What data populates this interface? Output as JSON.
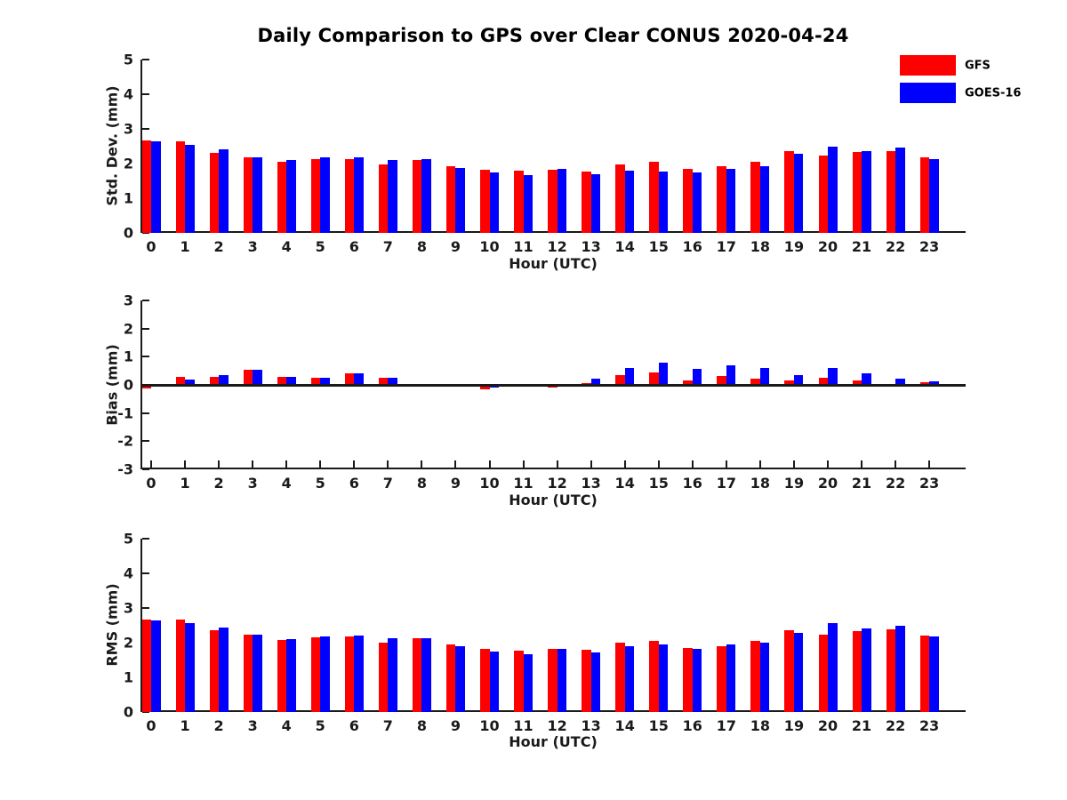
{
  "chart_data": [
    {
      "type": "bar",
      "title": "Daily Comparison to GPS over Clear CONUS 2020-04-24",
      "xlabel": "Hour (UTC)",
      "ylabel": "Std. Dev. (mm)",
      "ylim": [
        0,
        5
      ],
      "yticks": [
        0,
        1,
        2,
        3,
        4,
        5
      ],
      "grid": false,
      "legend_position": "upper-right-outside",
      "categories": [
        "0",
        "1",
        "2",
        "3",
        "4",
        "5",
        "6",
        "7",
        "8",
        "9",
        "10",
        "11",
        "12",
        "13",
        "14",
        "15",
        "16",
        "17",
        "18",
        "19",
        "20",
        "21",
        "22",
        "23"
      ],
      "series": [
        {
          "name": "GFS",
          "color": "#ff0000",
          "values": [
            2.67,
            2.65,
            2.31,
            2.18,
            2.06,
            2.13,
            2.13,
            1.98,
            2.11,
            1.93,
            1.81,
            1.79,
            1.81,
            1.78,
            1.98,
            2.04,
            1.84,
            1.92,
            2.04,
            2.37,
            2.22,
            2.33,
            2.36,
            2.17
          ]
        },
        {
          "name": "GOES-16",
          "color": "#0000ff",
          "values": [
            2.64,
            2.53,
            2.4,
            2.18,
            2.09,
            2.17,
            2.17,
            2.11,
            2.14,
            1.87,
            1.75,
            1.67,
            1.84,
            1.7,
            1.79,
            1.76,
            1.74,
            1.84,
            1.93,
            2.29,
            2.48,
            2.37,
            2.46,
            2.14
          ]
        }
      ]
    },
    {
      "type": "bar",
      "title": "",
      "xlabel": "Hour (UTC)",
      "ylabel": "Bias (mm)",
      "ylim": [
        -3,
        3
      ],
      "yticks": [
        -3,
        -2,
        -1,
        0,
        1,
        2,
        3
      ],
      "grid": false,
      "zero_line": true,
      "categories": [
        "0",
        "1",
        "2",
        "3",
        "4",
        "5",
        "6",
        "7",
        "8",
        "9",
        "10",
        "11",
        "12",
        "13",
        "14",
        "15",
        "16",
        "17",
        "18",
        "19",
        "20",
        "21",
        "22",
        "23"
      ],
      "series": [
        {
          "name": "GFS",
          "color": "#ff0000",
          "values": [
            -0.12,
            0.28,
            0.28,
            0.55,
            0.3,
            0.24,
            0.42,
            0.24,
            -0.03,
            -0.02,
            -0.16,
            -0.04,
            -0.08,
            0.06,
            0.36,
            0.45,
            0.15,
            0.32,
            0.22,
            0.15,
            0.26,
            0.17,
            -0.02,
            0.08
          ]
        },
        {
          "name": "GOES-16",
          "color": "#0000ff",
          "values": [
            -0.05,
            0.2,
            0.36,
            0.55,
            0.3,
            0.26,
            0.42,
            0.26,
            -0.04,
            -0.02,
            -0.08,
            -0.04,
            -0.02,
            0.22,
            0.6,
            0.78,
            0.58,
            0.7,
            0.6,
            0.35,
            0.6,
            0.4,
            0.23,
            0.13
          ]
        }
      ]
    },
    {
      "type": "bar",
      "title": "",
      "xlabel": "Hour (UTC)",
      "ylabel": "RMS (mm)",
      "ylim": [
        0,
        5
      ],
      "yticks": [
        0,
        1,
        2,
        3,
        4,
        5
      ],
      "grid": false,
      "categories": [
        "0",
        "1",
        "2",
        "3",
        "4",
        "5",
        "6",
        "7",
        "8",
        "9",
        "10",
        "11",
        "12",
        "13",
        "14",
        "15",
        "16",
        "17",
        "18",
        "19",
        "20",
        "21",
        "22",
        "23"
      ],
      "series": [
        {
          "name": "GFS",
          "color": "#ff0000",
          "values": [
            2.67,
            2.66,
            2.35,
            2.22,
            2.07,
            2.15,
            2.17,
            2.0,
            2.12,
            1.94,
            1.82,
            1.77,
            1.82,
            1.79,
            2.01,
            2.06,
            1.84,
            1.91,
            2.05,
            2.36,
            2.23,
            2.33,
            2.38,
            2.21
          ]
        },
        {
          "name": "GOES-16",
          "color": "#0000ff",
          "values": [
            2.64,
            2.56,
            2.43,
            2.22,
            2.1,
            2.18,
            2.2,
            2.12,
            2.13,
            1.89,
            1.74,
            1.66,
            1.82,
            1.72,
            1.89,
            1.94,
            1.81,
            1.94,
            2.01,
            2.29,
            2.57,
            2.4,
            2.49,
            2.17
          ]
        }
      ]
    }
  ]
}
